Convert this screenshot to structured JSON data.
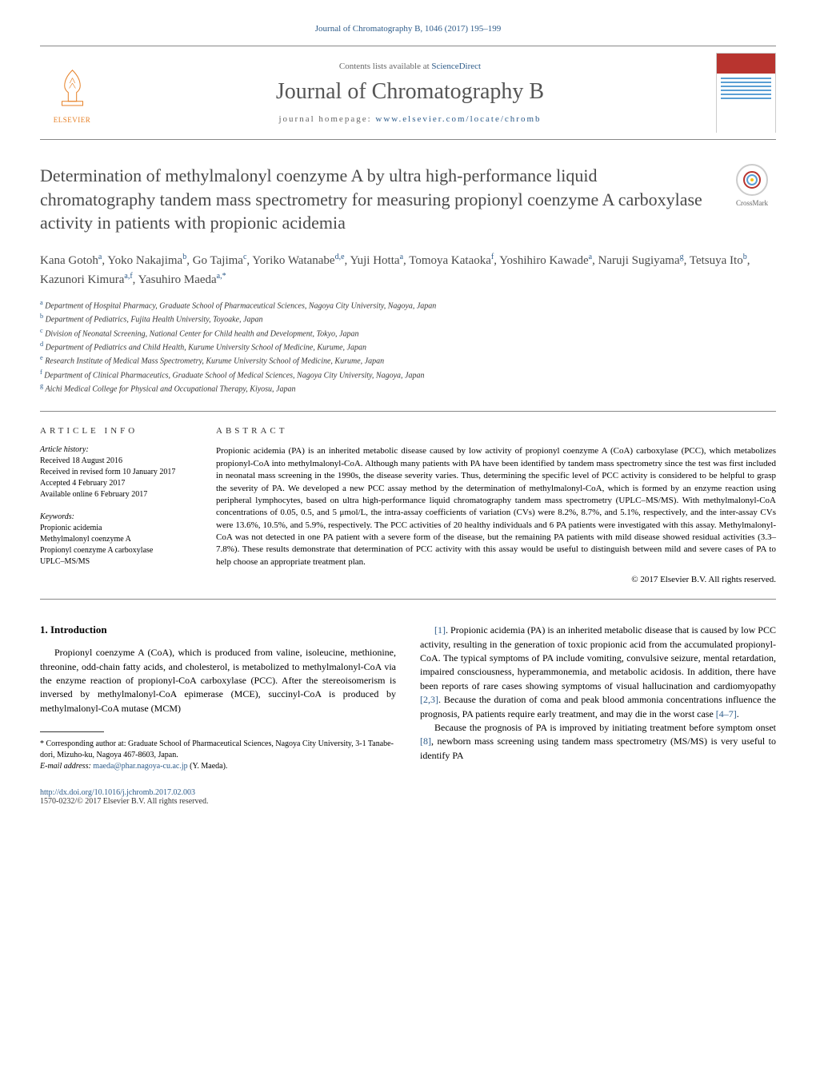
{
  "header": {
    "journal_ref": "Journal of Chromatography B, 1046 (2017) 195–199",
    "contents_prefix": "Contents lists available at ",
    "contents_link": "ScienceDirect",
    "journal_name": "Journal of Chromatography B",
    "homepage_prefix": "journal homepage: ",
    "homepage_url": "www.elsevier.com/locate/chromb",
    "publisher": "ELSEVIER",
    "crossmark": "CrossMark"
  },
  "article": {
    "title": "Determination of methylmalonyl coenzyme A by ultra high-performance liquid chromatography tandem mass spectrometry for measuring propionyl coenzyme A carboxylase activity in patients with propionic acidemia",
    "authors_html": "Kana Gotoh<sup>a</sup>, Yoko Nakajima<sup>b</sup>, Go Tajima<sup>c</sup>, Yoriko Watanabe<sup>d,e</sup>, Yuji Hotta<sup>a</sup>, Tomoya Kataoka<sup>f</sup>, Yoshihiro Kawade<sup>a</sup>, Naruji Sugiyama<sup>g</sup>, Tetsuya Ito<sup>b</sup>, Kazunori Kimura<sup>a,f</sup>, Yasuhiro Maeda<sup>a,*</sup>"
  },
  "affiliations": [
    {
      "sup": "a",
      "text": "Department of Hospital Pharmacy, Graduate School of Pharmaceutical Sciences, Nagoya City University, Nagoya, Japan"
    },
    {
      "sup": "b",
      "text": "Department of Pediatrics, Fujita Health University, Toyoake, Japan"
    },
    {
      "sup": "c",
      "text": "Division of Neonatal Screening, National Center for Child health and Development, Tokyo, Japan"
    },
    {
      "sup": "d",
      "text": "Department of Pediatrics and Child Health, Kurume University School of Medicine, Kurume, Japan"
    },
    {
      "sup": "e",
      "text": "Research Institute of Medical Mass Spectrometry, Kurume University School of Medicine, Kurume, Japan"
    },
    {
      "sup": "f",
      "text": "Department of Clinical Pharmaceutics, Graduate School of Medical Sciences, Nagoya City University, Nagoya, Japan"
    },
    {
      "sup": "g",
      "text": "Aichi Medical College for Physical and Occupational Therapy, Kiyosu, Japan"
    }
  ],
  "info": {
    "heading": "ARTICLE INFO",
    "history_label": "Article history:",
    "history": [
      "Received 18 August 2016",
      "Received in revised form 10 January 2017",
      "Accepted 4 February 2017",
      "Available online 6 February 2017"
    ],
    "keywords_label": "Keywords:",
    "keywords": [
      "Propionic acidemia",
      "Methylmalonyl coenzyme A",
      "Propionyl coenzyme A carboxylase",
      "UPLC–MS/MS"
    ]
  },
  "abstract": {
    "heading": "ABSTRACT",
    "text": "Propionic acidemia (PA) is an inherited metabolic disease caused by low activity of propionyl coenzyme A (CoA) carboxylase (PCC), which metabolizes propionyl-CoA into methylmalonyl-CoA. Although many patients with PA have been identified by tandem mass spectrometry since the test was first included in neonatal mass screening in the 1990s, the disease severity varies. Thus, determining the specific level of PCC activity is considered to be helpful to grasp the severity of PA. We developed a new PCC assay method by the determination of methylmalonyl-CoA, which is formed by an enzyme reaction using peripheral lymphocytes, based on ultra high-performance liquid chromatography tandem mass spectrometry (UPLC–MS/MS). With methylmalonyl-CoA concentrations of 0.05, 0.5, and 5 μmol/L, the intra-assay coefficients of variation (CVs) were 8.2%, 8.7%, and 5.1%, respectively, and the inter-assay CVs were 13.6%, 10.5%, and 5.9%, respectively. The PCC activities of 20 healthy individuals and 6 PA patients were investigated with this assay. Methylmalonyl-CoA was not detected in one PA patient with a severe form of the disease, but the remaining PA patients with mild disease showed residual activities (3.3–7.8%). These results demonstrate that determination of PCC activity with this assay would be useful to distinguish between mild and severe cases of PA to help choose an appropriate treatment plan.",
    "copyright": "© 2017 Elsevier B.V. All rights reserved."
  },
  "body": {
    "section1_heading": "1. Introduction",
    "col1_p1": "Propionyl coenzyme A (CoA), which is produced from valine, isoleucine, methionine, threonine, odd-chain fatty acids, and cholesterol, is metabolized to methylmalonyl-CoA via the enzyme reaction of propionyl-CoA carboxylase (PCC). After the stereoisomerism is inversed by methylmalonyl-CoA epimerase (MCE), succinyl-CoA is produced by methylmalonyl-CoA mutase (MCM)",
    "col2_p1_html": "<span class=\"ref\">[1]</span>. Propionic acidemia (PA) is an inherited metabolic disease that is caused by low PCC activity, resulting in the generation of toxic propionic acid from the accumulated propionyl-CoA. The typical symptoms of PA include vomiting, convulsive seizure, mental retardation, impaired consciousness, hyperammonemia, and metabolic acidosis. In addition, there have been reports of rare cases showing symptoms of visual hallucination and cardiomyopathy <span class=\"ref\">[2,3]</span>. Because the duration of coma and peak blood ammonia concentrations influence the prognosis, PA patients require early treatment, and may die in the worst case <span class=\"ref\">[4–7]</span>.",
    "col2_p2_html": "Because the prognosis of PA is improved by initiating treatment before symptom onset <span class=\"ref\">[8]</span>, newborn mass screening using tandem mass spectrometry (MS/MS) is very useful to identify PA"
  },
  "footnote": {
    "corresponding": "* Corresponding author at: Graduate School of Pharmaceutical Sciences, Nagoya City University, 3-1 Tanabe-dori, Mizuho-ku, Nagoya 467-8603, Japan.",
    "email_label": "E-mail address: ",
    "email": "maeda@phar.nagoya-cu.ac.jp",
    "email_suffix": " (Y. Maeda)."
  },
  "footer": {
    "doi": "http://dx.doi.org/10.1016/j.jchromb.2017.02.003",
    "issn": "1570-0232/© 2017 Elsevier B.V. All rights reserved."
  },
  "colors": {
    "link": "#2e5c8a",
    "publisher": "#e67e22",
    "journal_cover_top": "#b8342f",
    "cover_lines": "#5a9fd4",
    "title_text": "#4a4a4a",
    "body_text": "#000000"
  }
}
